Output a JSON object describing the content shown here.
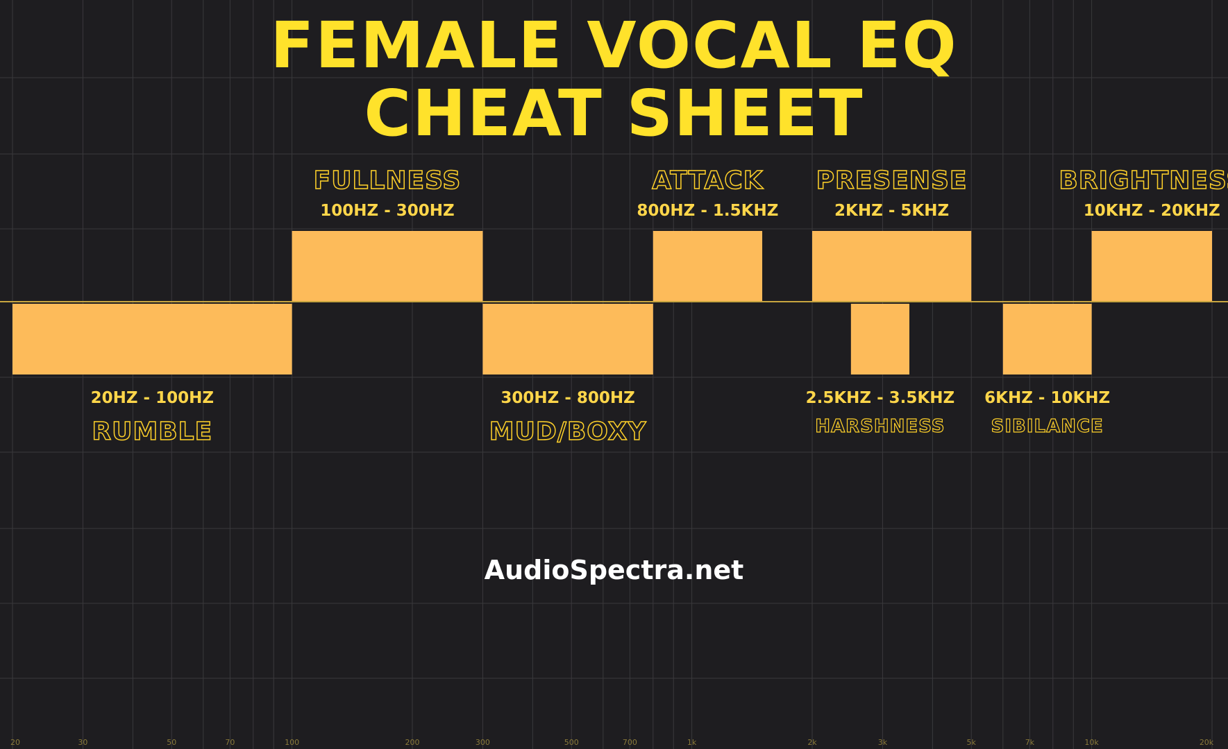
{
  "title_line1": "FEMALE VOCAL EQ",
  "title_line2": "CHEAT SHEET",
  "website": "AudioSpectra.net",
  "colors": {
    "background": "#1e1d20",
    "bar": "#fdbb5a",
    "title": "#ffe22b",
    "label": "#ffd12a",
    "grid": "#3a393c",
    "zero_line": "#c9a640"
  },
  "chart_data": {
    "type": "bar",
    "x_scale": "log",
    "xlim": [
      20,
      20000
    ],
    "x_ticks": [
      {
        "value": 20,
        "label": "20"
      },
      {
        "value": 30,
        "label": "30"
      },
      {
        "value": 50,
        "label": "50"
      },
      {
        "value": 70,
        "label": "70"
      },
      {
        "value": 100,
        "label": "100"
      },
      {
        "value": 200,
        "label": "200"
      },
      {
        "value": 300,
        "label": "300"
      },
      {
        "value": 500,
        "label": "500"
      },
      {
        "value": 700,
        "label": "700"
      },
      {
        "value": 1000,
        "label": "1k"
      },
      {
        "value": 2000,
        "label": "2k"
      },
      {
        "value": 3000,
        "label": "3k"
      },
      {
        "value": 5000,
        "label": "5k"
      },
      {
        "value": 7000,
        "label": "7k"
      },
      {
        "value": 10000,
        "label": "10k"
      },
      {
        "value": 20000,
        "label": "20k"
      }
    ],
    "bands": [
      {
        "name": "RUMBLE",
        "range": "20HZ - 100HZ",
        "from": 20,
        "to": 100,
        "direction": "cut"
      },
      {
        "name": "FULLNESS",
        "range": "100HZ - 300HZ",
        "from": 100,
        "to": 300,
        "direction": "boost"
      },
      {
        "name": "MUD/BOXY",
        "range": "300HZ - 800HZ",
        "from": 300,
        "to": 800,
        "direction": "cut"
      },
      {
        "name": "ATTACK",
        "range": "800HZ - 1.5KHZ",
        "from": 800,
        "to": 1500,
        "direction": "boost"
      },
      {
        "name": "PRESENSE",
        "range": "2KHZ - 5KHZ",
        "from": 2000,
        "to": 5000,
        "direction": "boost"
      },
      {
        "name": "HARSHNESS",
        "range": "2.5KHZ - 3.5KHZ",
        "from": 2500,
        "to": 3500,
        "direction": "cut"
      },
      {
        "name": "SIBILANCE",
        "range": "6KHZ - 10KHZ",
        "from": 6000,
        "to": 10000,
        "direction": "cut"
      },
      {
        "name": "BRIGHTNESS",
        "range": "10KHZ - 20KHZ",
        "from": 10000,
        "to": 20000,
        "direction": "boost"
      }
    ]
  }
}
